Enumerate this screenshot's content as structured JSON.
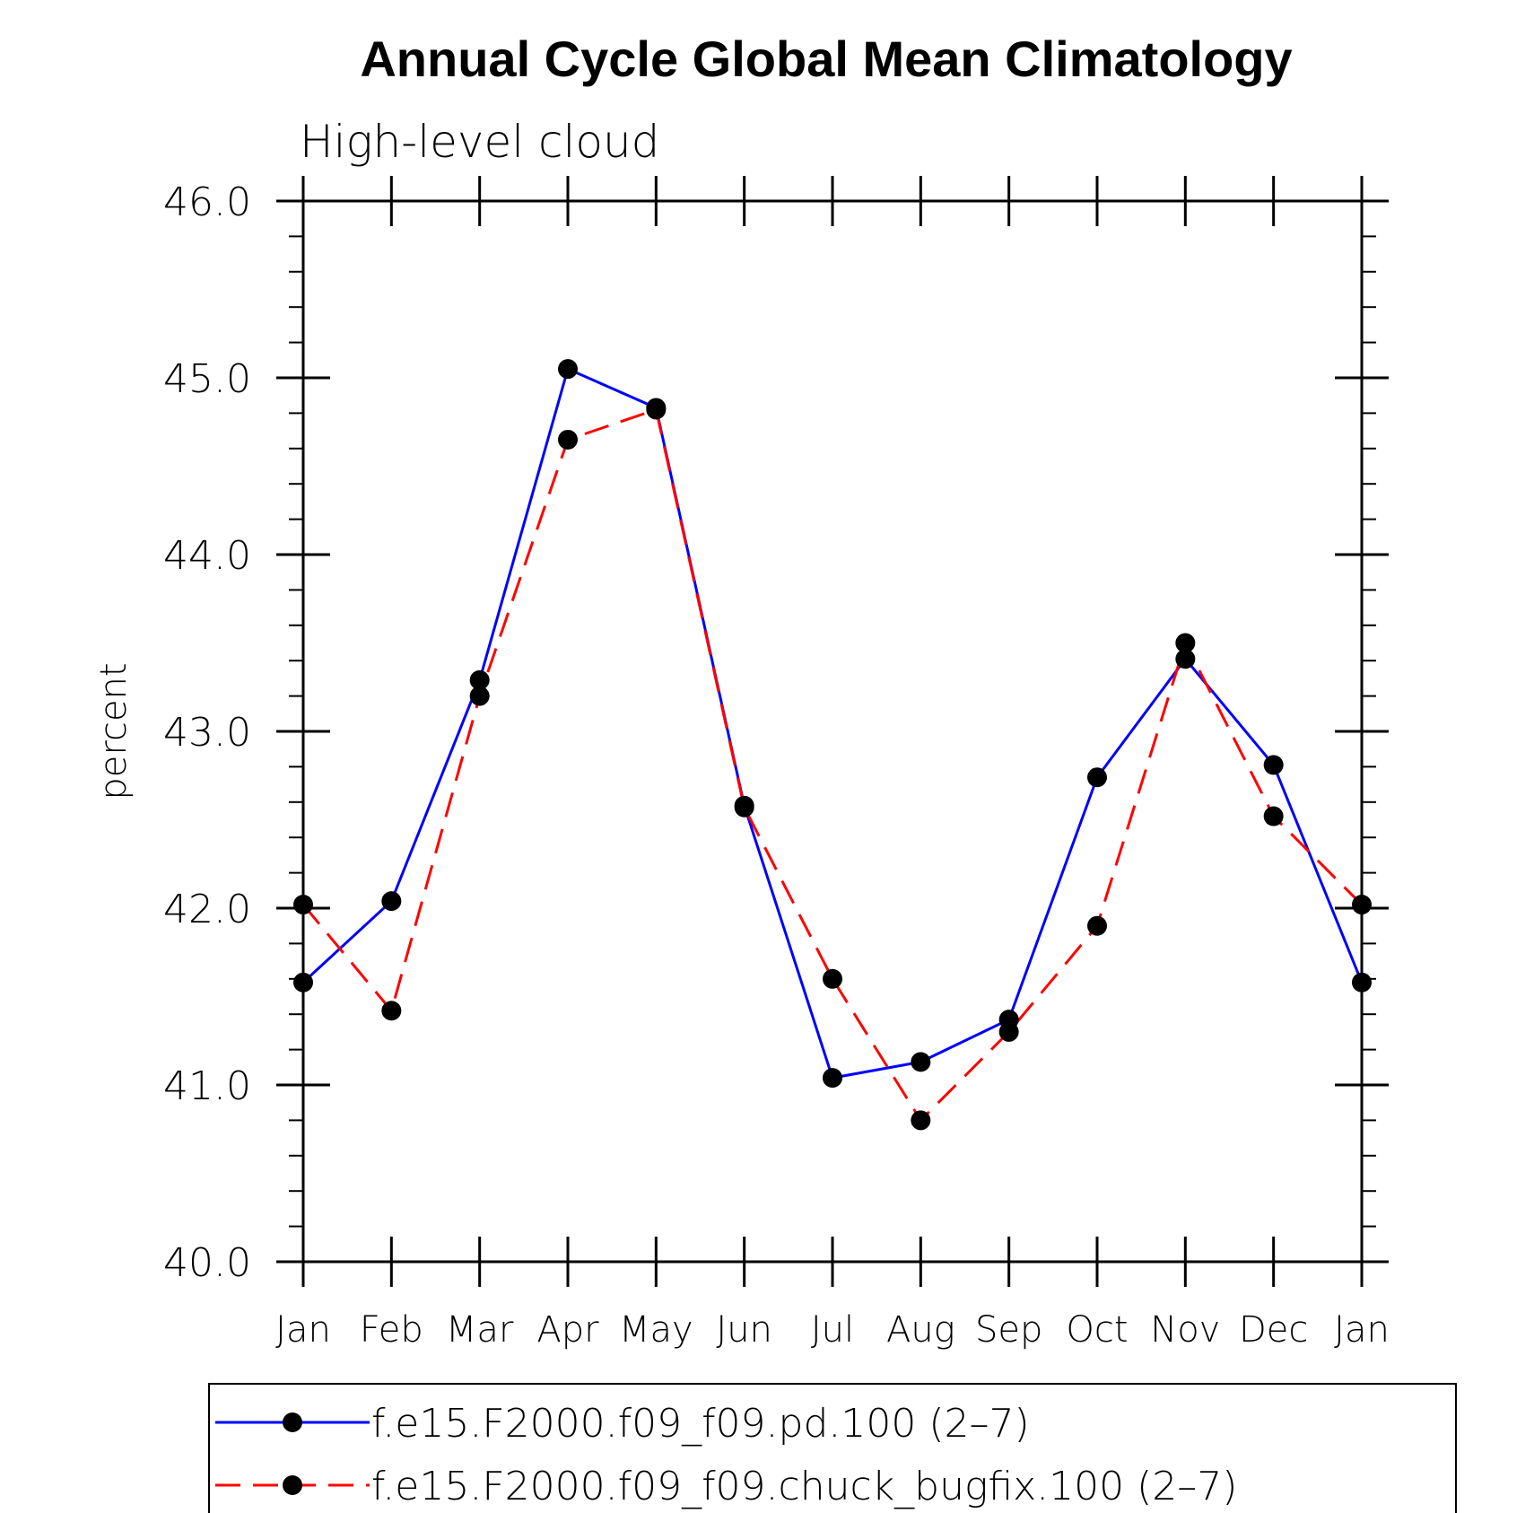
{
  "chart_data": {
    "type": "line",
    "title": "Annual Cycle Global Mean Climatology",
    "subtitle": "High-level cloud",
    "xlabel": "",
    "ylabel": "percent",
    "ylim": [
      40.0,
      46.0
    ],
    "yticks": [
      "40.0",
      "41.0",
      "42.0",
      "43.0",
      "44.0",
      "45.0",
      "46.0"
    ],
    "categories": [
      "Jan",
      "Feb",
      "Mar",
      "Apr",
      "May",
      "Jun",
      "Jul",
      "Aug",
      "Sep",
      "Oct",
      "Nov",
      "Dec",
      "Jan"
    ],
    "series": [
      {
        "name": "f.e15.F2000.f09_f09.pd.100 (2–7)",
        "color": "#0000ff",
        "line_style": "solid",
        "marker": "filled-circle",
        "values": [
          41.58,
          42.04,
          43.29,
          45.05,
          44.83,
          42.58,
          41.04,
          41.13,
          41.37,
          42.74,
          43.41,
          42.81,
          41.58
        ]
      },
      {
        "name": "f.e15.F2000.f09_f09.chuck_bugfix.100 (2–7)",
        "color": "#ff0000",
        "line_style": "dashed",
        "marker": "filled-circle",
        "values": [
          42.02,
          41.42,
          43.2,
          44.65,
          44.82,
          42.57,
          41.6,
          40.8,
          41.3,
          41.9,
          43.5,
          42.52,
          42.02
        ]
      }
    ],
    "grid": false,
    "legend": "bottom"
  }
}
